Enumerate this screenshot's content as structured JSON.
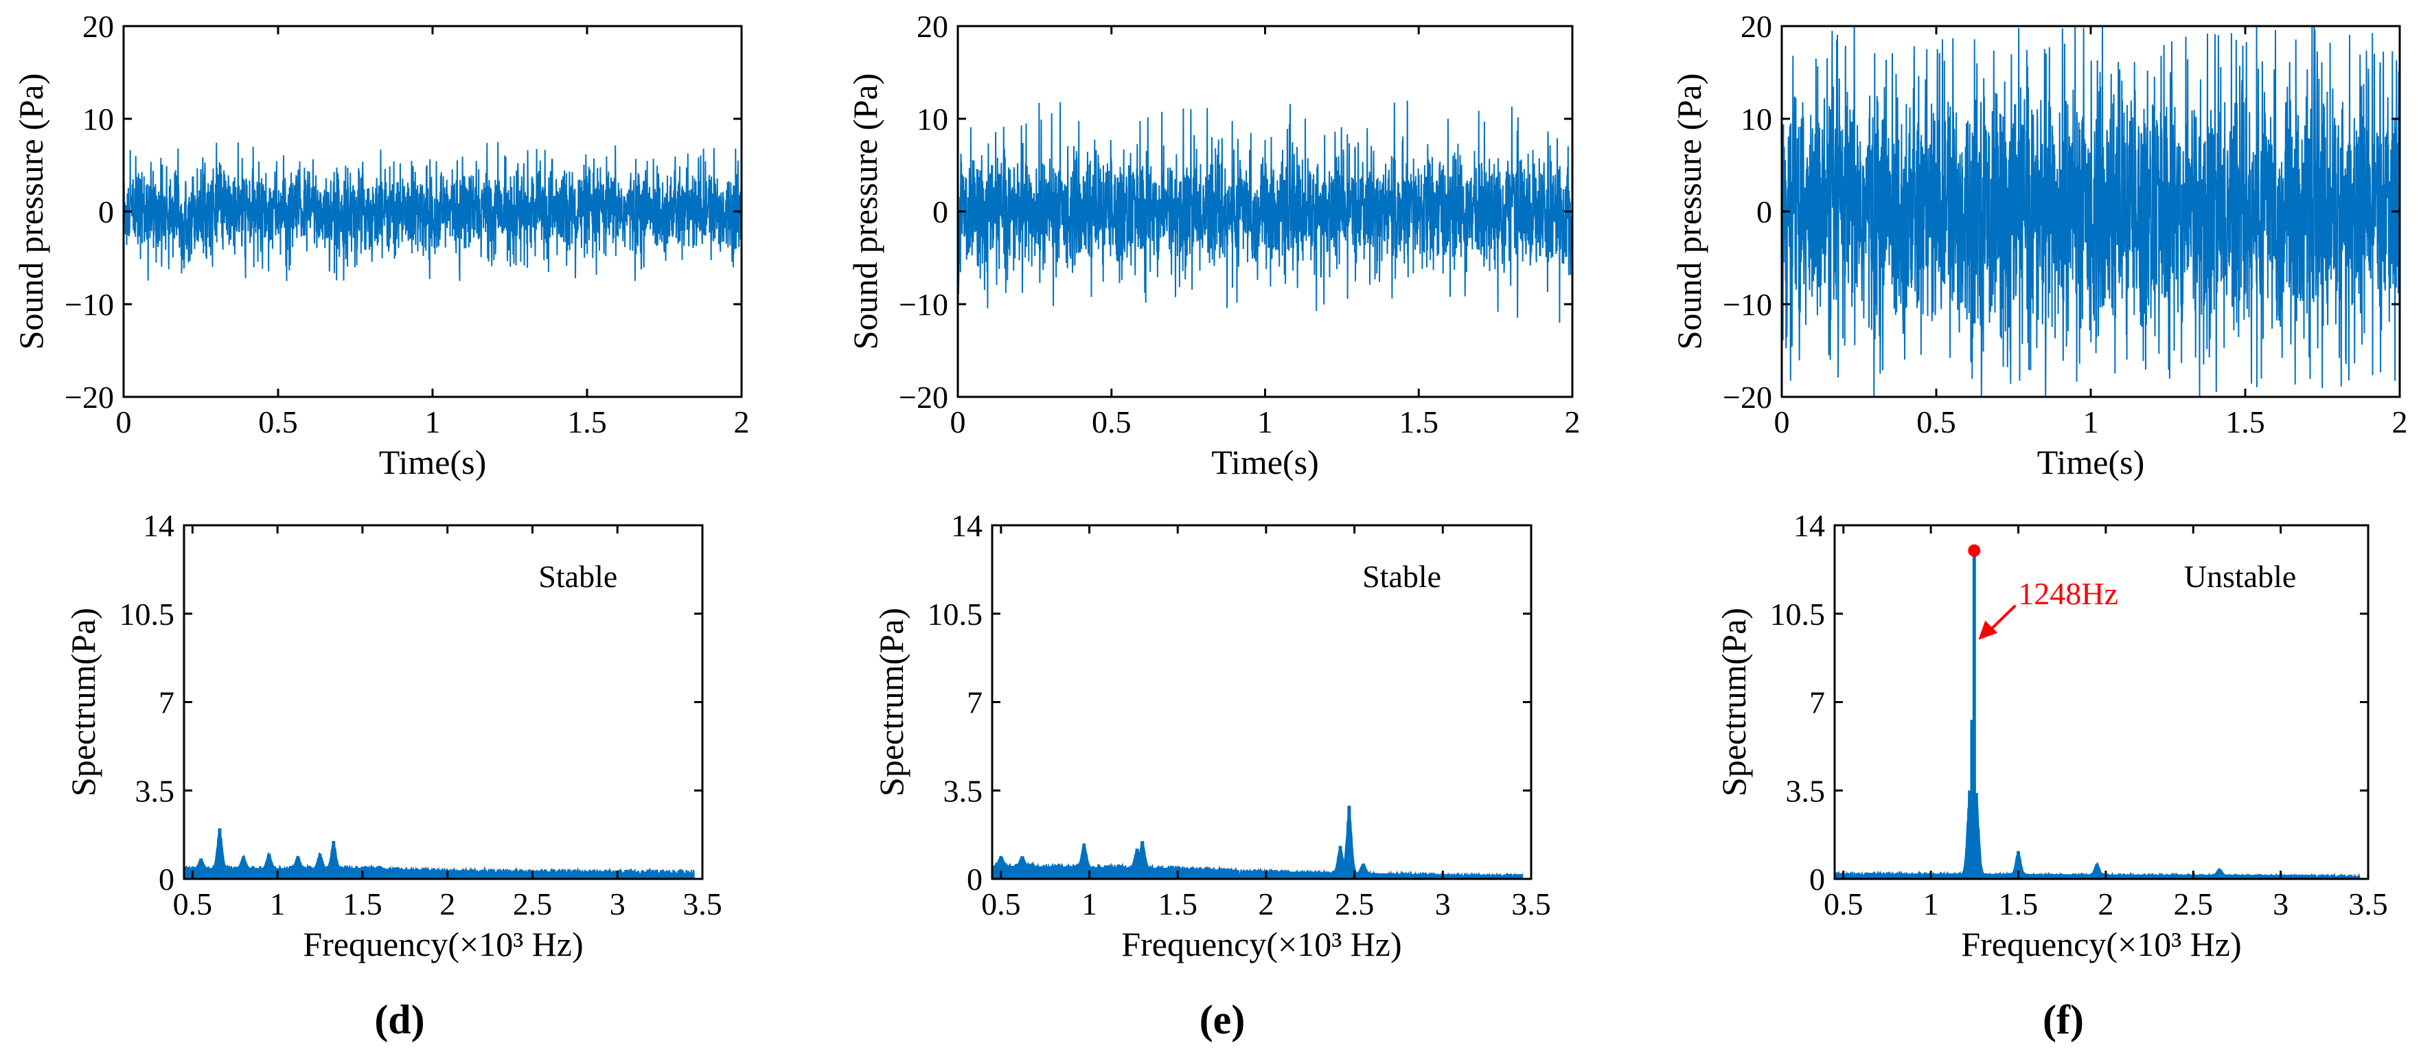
{
  "chart_data": [
    {
      "type": "line",
      "id": "time-stable-1",
      "xlabel": "Time(s)",
      "ylabel": "Sound pressure (Pa)",
      "xlim": [
        0,
        2
      ],
      "ylim": [
        -20,
        20
      ],
      "xticks": [
        0,
        0.5,
        1,
        1.5,
        2
      ],
      "xtick_labels": [
        "0",
        "0.5",
        "1",
        "1.5",
        "2"
      ],
      "yticks": [
        -20,
        -10,
        0,
        10,
        20
      ],
      "ytick_labels": [
        "−20",
        "−10",
        "0",
        "10",
        "20"
      ],
      "series": [
        {
          "name": "sound pressure",
          "color": "#0070c0",
          "envelope": {
            "band": 5,
            "peak": 7.5
          }
        }
      ]
    },
    {
      "type": "line",
      "id": "time-stable-2",
      "xlabel": "Time(s)",
      "ylabel": "Sound pressure (Pa)",
      "xlim": [
        0,
        2
      ],
      "ylim": [
        -20,
        20
      ],
      "xticks": [
        0,
        0.5,
        1,
        1.5,
        2
      ],
      "xtick_labels": [
        "0",
        "0.5",
        "1",
        "1.5",
        "2"
      ],
      "yticks": [
        -20,
        -10,
        0,
        10,
        20
      ],
      "ytick_labels": [
        "−20",
        "−10",
        "0",
        "10",
        "20"
      ],
      "series": [
        {
          "name": "sound pressure",
          "color": "#0070c0",
          "envelope": {
            "band": 6.5,
            "peak": 12
          }
        }
      ]
    },
    {
      "type": "line",
      "id": "time-unstable",
      "xlabel": "Time(s)",
      "ylabel": "Sound pressure (Pa)",
      "xlim": [
        0,
        2
      ],
      "ylim": [
        -20,
        20
      ],
      "xticks": [
        0,
        0.5,
        1,
        1.5,
        2
      ],
      "xtick_labels": [
        "0",
        "0.5",
        "1",
        "1.5",
        "2"
      ],
      "yticks": [
        -20,
        -10,
        0,
        10,
        20
      ],
      "ytick_labels": [
        "−20",
        "−10",
        "0",
        "10",
        "20"
      ],
      "series": [
        {
          "name": "sound pressure",
          "color": "#0070c0",
          "envelope": {
            "band": 15,
            "peak": 20
          }
        }
      ]
    },
    {
      "type": "area",
      "id": "spectrum-d",
      "xlabel": "Frequency(×10³ Hz)",
      "ylabel": "Spectrum(Pa)",
      "xlim": [
        0.45,
        3.5
      ],
      "ylim": [
        0,
        14
      ],
      "xticks": [
        0.5,
        1,
        1.5,
        2,
        2.5,
        3,
        3.5
      ],
      "xtick_labels": [
        "0.5",
        "1",
        "1.5",
        "2",
        "2.5",
        "3",
        "3.5"
      ],
      "yticks": [
        0,
        3.5,
        7,
        10.5,
        14
      ],
      "ytick_labels": [
        "0",
        "3.5",
        "7",
        "10.5",
        "14"
      ],
      "annotation": "Stable",
      "panel_label": "(d)",
      "peaks": [
        {
          "x": 0.55,
          "y": 0.8
        },
        {
          "x": 0.66,
          "y": 2.0
        },
        {
          "x": 0.8,
          "y": 0.9
        },
        {
          "x": 0.95,
          "y": 1.0
        },
        {
          "x": 1.12,
          "y": 0.9
        },
        {
          "x": 1.25,
          "y": 1.0
        },
        {
          "x": 1.33,
          "y": 1.5
        },
        {
          "x": 1.6,
          "y": 0.5
        }
      ],
      "baseline": [
        {
          "x": 0.45,
          "y": 0.4
        },
        {
          "x": 1.5,
          "y": 0.4
        },
        {
          "x": 2.0,
          "y": 0.32
        },
        {
          "x": 3.0,
          "y": 0.28
        },
        {
          "x": 3.45,
          "y": 0.28
        }
      ],
      "series": [
        {
          "name": "spectrum",
          "color": "#0070c0"
        }
      ]
    },
    {
      "type": "area",
      "id": "spectrum-e",
      "xlabel": "Frequency(×10³ Hz)",
      "ylabel": "Spectrum(Pa)",
      "xlim": [
        0.45,
        3.5
      ],
      "ylim": [
        0,
        14
      ],
      "xticks": [
        0.5,
        1,
        1.5,
        2,
        2.5,
        3,
        3.5
      ],
      "xtick_labels": [
        "0.5",
        "1",
        "1.5",
        "2",
        "2.5",
        "3",
        "3.5"
      ],
      "yticks": [
        0,
        3.5,
        7,
        10.5,
        14
      ],
      "ytick_labels": [
        "0",
        "3.5",
        "7",
        "10.5",
        "14"
      ],
      "annotation": "Stable",
      "panel_label": "(e)",
      "peaks": [
        {
          "x": 0.5,
          "y": 0.9
        },
        {
          "x": 0.62,
          "y": 0.9
        },
        {
          "x": 0.97,
          "y": 1.4
        },
        {
          "x": 1.27,
          "y": 1.2
        },
        {
          "x": 1.3,
          "y": 1.5
        },
        {
          "x": 2.42,
          "y": 1.3
        },
        {
          "x": 2.47,
          "y": 2.9
        },
        {
          "x": 2.55,
          "y": 0.6
        }
      ],
      "baseline": [
        {
          "x": 0.45,
          "y": 0.5
        },
        {
          "x": 1.5,
          "y": 0.4
        },
        {
          "x": 2.0,
          "y": 0.28
        },
        {
          "x": 3.0,
          "y": 0.15
        },
        {
          "x": 3.45,
          "y": 0.15
        }
      ],
      "series": [
        {
          "name": "spectrum",
          "color": "#0070c0"
        }
      ]
    },
    {
      "type": "area",
      "id": "spectrum-f",
      "xlabel": "Frequency(×10³ Hz)",
      "ylabel": "Spectrum(Pa)",
      "xlim": [
        0.45,
        3.5
      ],
      "ylim": [
        0,
        14
      ],
      "xticks": [
        0.5,
        1,
        1.5,
        2,
        2.5,
        3,
        3.5
      ],
      "xtick_labels": [
        "0.5",
        "1",
        "1.5",
        "2",
        "2.5",
        "3",
        "3.5"
      ],
      "yticks": [
        0,
        3.5,
        7,
        10.5,
        14
      ],
      "ytick_labels": [
        "0",
        "3.5",
        "7",
        "10.5",
        "14"
      ],
      "annotation": "Unstable",
      "panel_label": "(f)",
      "peak_marker": {
        "x": 1.248,
        "y": 13.0,
        "label": "1248Hz",
        "color": "#ff0000"
      },
      "peaks": [
        {
          "x": 1.222,
          "y": 3.5
        },
        {
          "x": 1.235,
          "y": 6.3
        },
        {
          "x": 1.248,
          "y": 13.0
        },
        {
          "x": 1.26,
          "y": 3.4
        },
        {
          "x": 1.5,
          "y": 1.1
        },
        {
          "x": 1.95,
          "y": 0.6
        },
        {
          "x": 2.65,
          "y": 0.4
        }
      ],
      "baseline": [
        {
          "x": 0.45,
          "y": 0.2
        },
        {
          "x": 2.0,
          "y": 0.15
        },
        {
          "x": 3.45,
          "y": 0.12
        }
      ],
      "series": [
        {
          "name": "spectrum",
          "color": "#0070c0"
        }
      ]
    }
  ]
}
